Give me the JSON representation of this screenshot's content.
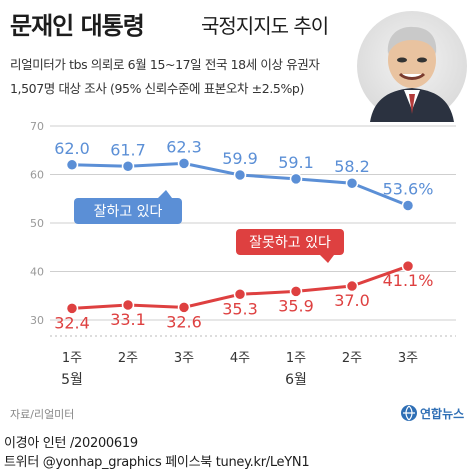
{
  "header": {
    "title_main": "문재인 대통령",
    "title_sub": "국정지지도 추이",
    "info_line1": "리얼미터가 tbs 의뢰로 6월 15~17일 전국 18세 이상 유권자",
    "info_line2": "1,507명 대상 조사 (95% 신뢰수준에 표본오차 ±2.5%p)"
  },
  "footer": {
    "source": "자료/리얼미터",
    "logo_text": "연합뉴스",
    "credit_line1": "이경아 인턴 /20200619",
    "credit_line2": "트위터 @yonhap_graphics  페이스북 tuney.kr/LeYN1"
  },
  "colors": {
    "positive": "#5b8fd6",
    "negative": "#de4040",
    "grid": "#cfcfcf"
  },
  "chart_data": {
    "type": "line",
    "x": [
      "1주",
      "2주",
      "3주",
      "4주",
      "1주",
      "2주",
      "3주"
    ],
    "month_labels": [
      {
        "label": "5월",
        "at_index": 0
      },
      {
        "label": "6월",
        "at_index": 4
      }
    ],
    "series": [
      {
        "name": "잘하고 있다",
        "values": [
          62.0,
          61.7,
          62.3,
          59.9,
          59.1,
          58.2,
          53.6
        ],
        "labels": [
          "62.0",
          "61.7",
          "62.3",
          "59.9",
          "59.1",
          "58.2",
          "53.6%"
        ],
        "color": "#5b8fd6"
      },
      {
        "name": "잘못하고 있다",
        "values": [
          32.4,
          33.1,
          32.6,
          35.3,
          35.9,
          37.0,
          41.1
        ],
        "labels": [
          "32.4",
          "33.1",
          "32.6",
          "35.3",
          "35.9",
          "37.0",
          "41.1%"
        ],
        "color": "#de4040"
      }
    ],
    "yticks": [
      "70",
      "60",
      "50",
      "40",
      "30"
    ],
    "ylim": [
      30,
      70
    ],
    "grid": true,
    "legend": "inline boxes"
  }
}
